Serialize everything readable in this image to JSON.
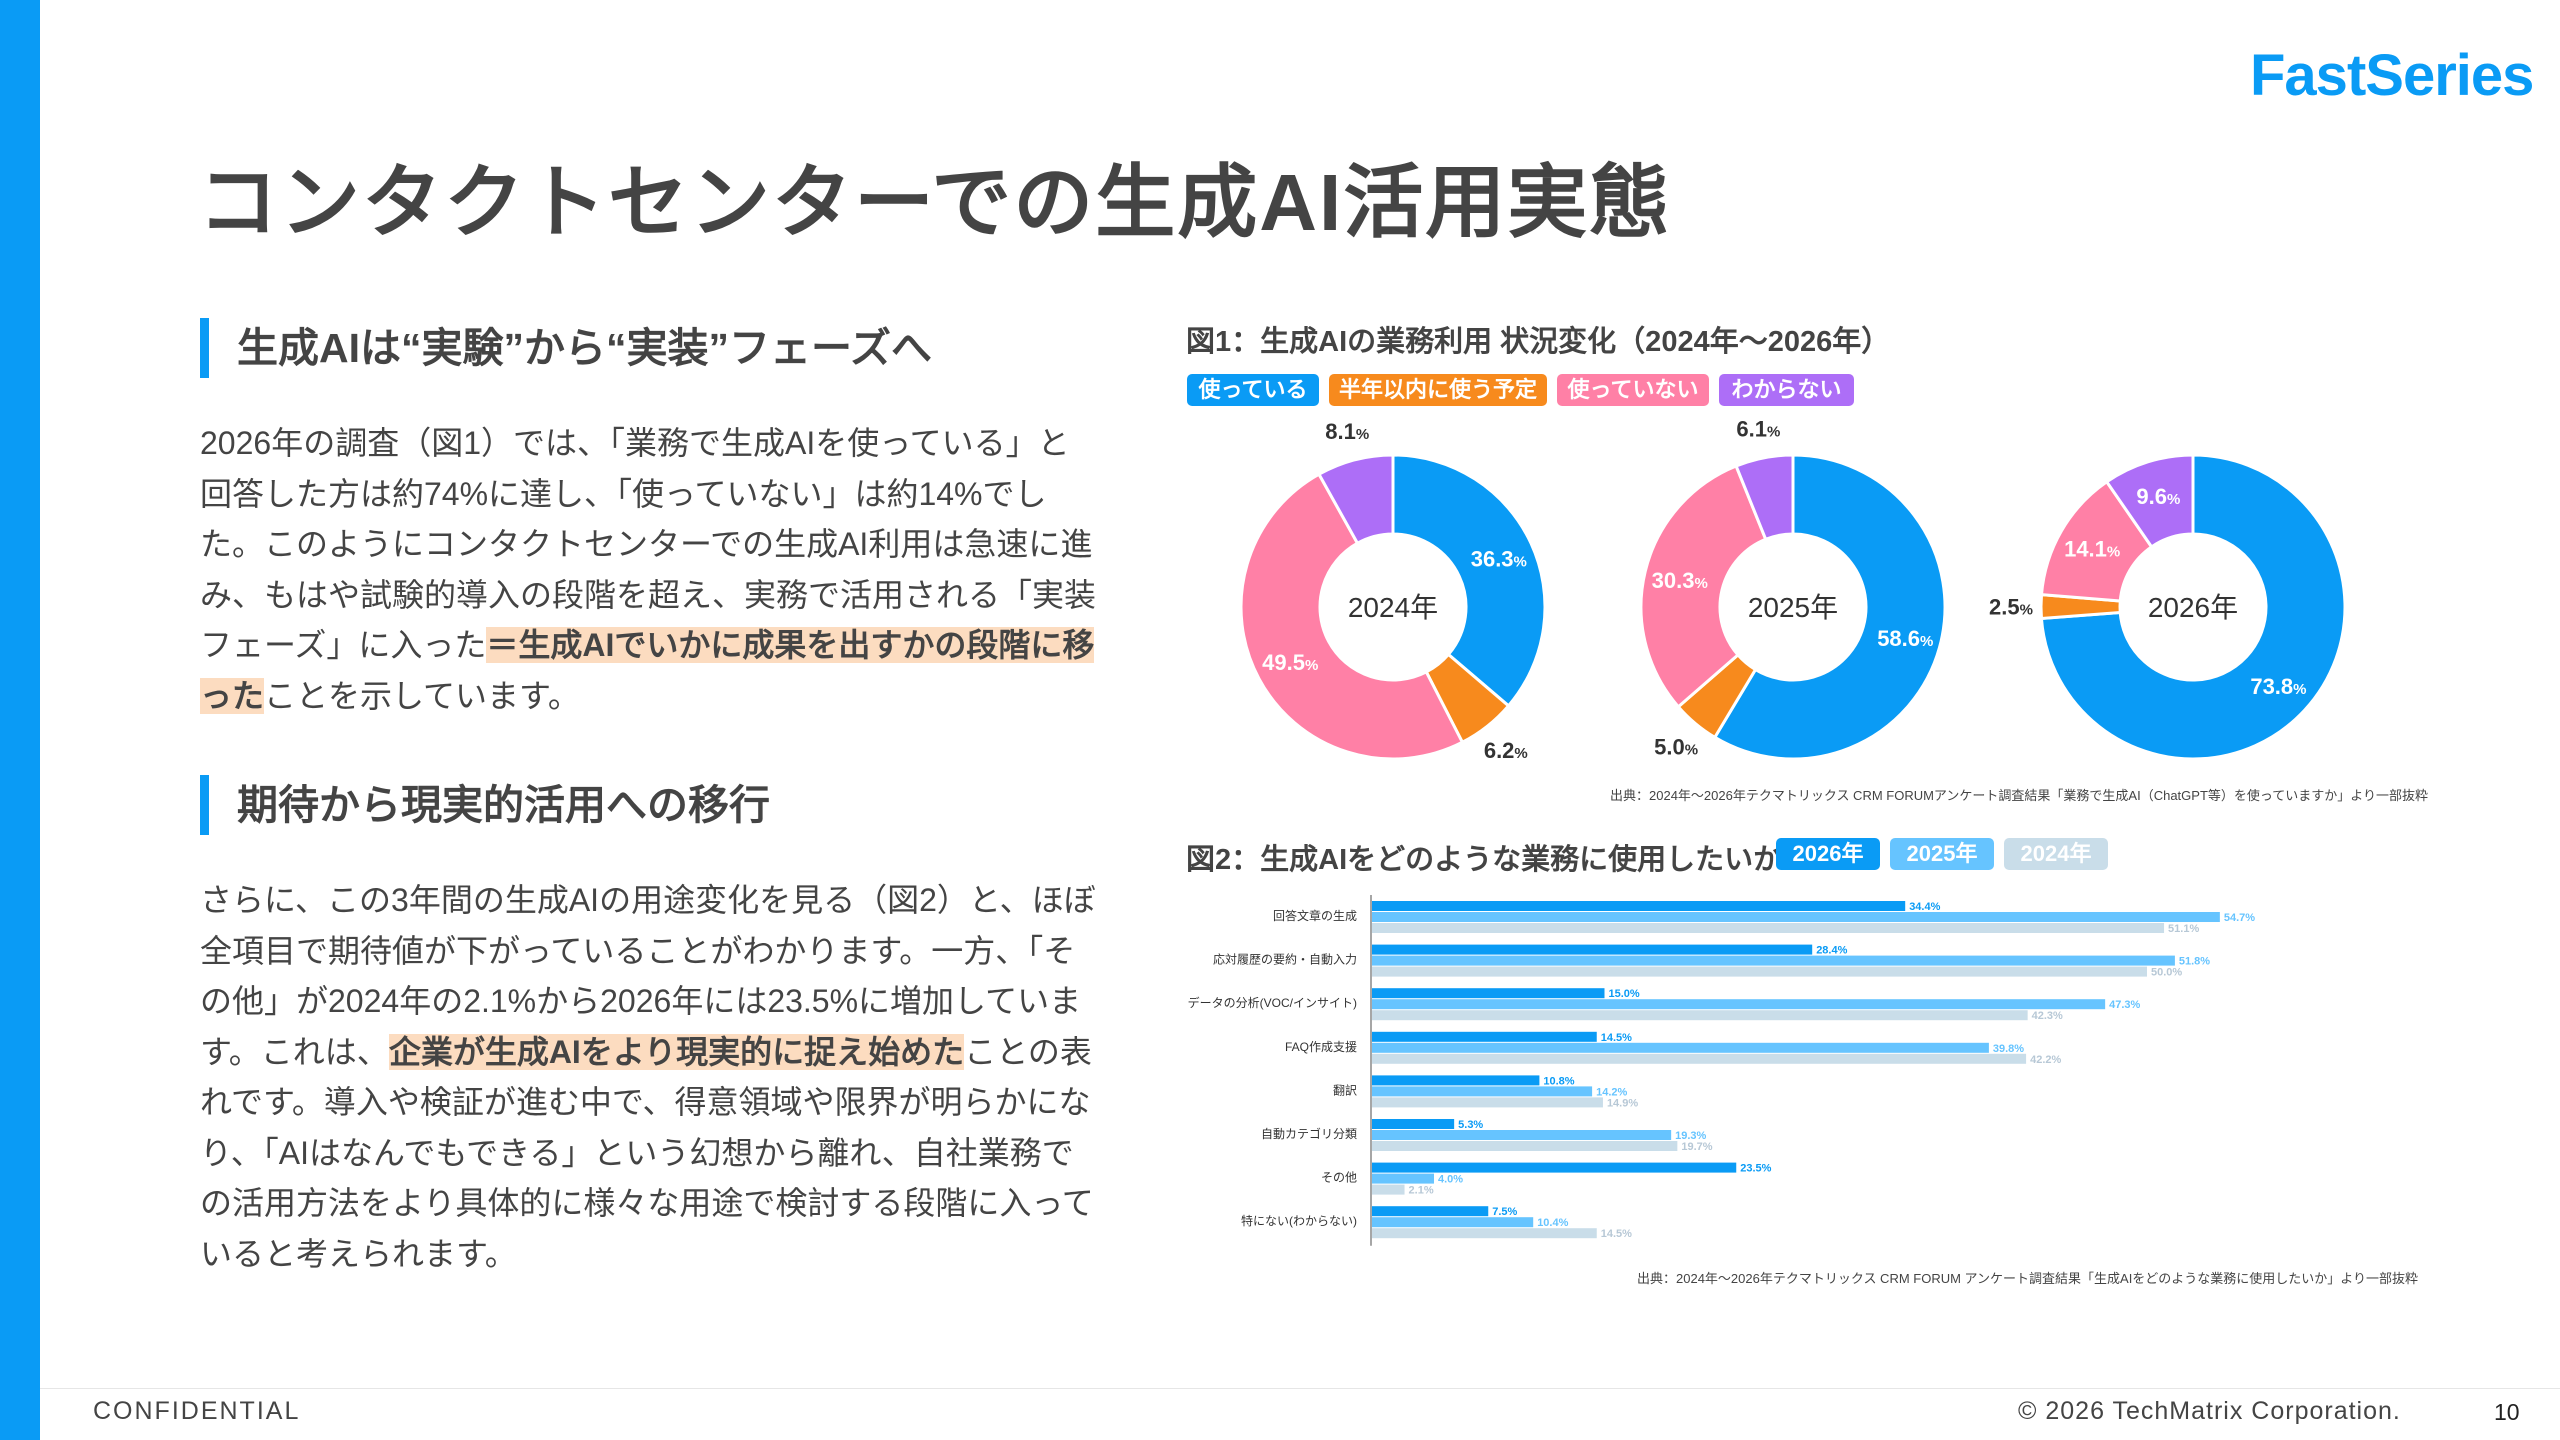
{
  "brand": {
    "logo": "FastSeries",
    "accent": "#0a9bf5"
  },
  "title": "コンタクトセンターでの生成AI活用実態",
  "section1": {
    "heading": "生成AIは“実験”から“実装”フェーズへ",
    "pre": "2026年の調査（図1）では、「業務で生成AIを使っている」と回答した方は約74%に達し、「使っていない」は約14%でした。このようにコンタクトセンターでの生成AI利用は急速に進み、もはや試験的導入の段階を超え、実務で活用される「実装フェーズ」に入った",
    "highlight": "＝生成AIでいかに成果を出すかの段階に移った",
    "post": "ことを示しています。"
  },
  "section2": {
    "heading": "期待から現実的活用への移行",
    "pre": "さらに、この3年間の生成AIの用途変化を見る（図2）と、ほぼ全項目で期待値が下がっていることがわかります。一方、「その他」が2024年の2.1%から2026年には23.5%に増加しています。これは、",
    "highlight": "企業が生成AIをより現実的に捉え始めた",
    "post": "ことの表れです。導入や検証が進む中で、得意領域や限界が明らかになり、「AIはなんでもできる」という幻想から離れ、自社業務での活用方法をより具体的に様々な用途で検討する段階に入っていると考えられます。"
  },
  "chart_data": [
    {
      "type": "pie",
      "title": "図1：生成AIの業務利用 状況変化（2024年〜2026年）",
      "legend": [
        {
          "label": "使っている",
          "color": "#0a9bf5"
        },
        {
          "label": "半年以内に使う予定",
          "color": "#f78a1d"
        },
        {
          "label": "使っていない",
          "color": "#ff80a6"
        },
        {
          "label": "わからない",
          "color": "#ad6ef7"
        }
      ],
      "donuts": [
        {
          "year": "2024年",
          "values": [
            36.3,
            6.2,
            49.5,
            8.1
          ]
        },
        {
          "year": "2025年",
          "values": [
            58.6,
            5.0,
            30.3,
            6.1
          ]
        },
        {
          "year": "2026年",
          "values": [
            73.8,
            2.5,
            14.1,
            9.6
          ]
        }
      ],
      "unit": "%",
      "source": "出典：2024年〜2026年テクマトリックス CRM FORUMアンケート調査結果「業務で生成AI（ChatGPT等）を使っていますか」より一部抜粋"
    },
    {
      "type": "bar",
      "title": "図2：生成AIをどのような業務に使用したいか",
      "categories": [
        "回答文章の生成",
        "応対履歴の要約・自動入力",
        "データの分析(VOC/インサイト)",
        "FAQ作成支援",
        "翻訳",
        "自動カテゴリ分類",
        "その他",
        "特にない(わからない)"
      ],
      "series": [
        {
          "name": "2026年",
          "color": "#0a9bf5",
          "values": [
            34.4,
            28.4,
            15.0,
            14.5,
            10.8,
            5.3,
            23.5,
            7.5
          ]
        },
        {
          "name": "2025年",
          "color": "#66c4ff",
          "values": [
            54.7,
            51.8,
            47.3,
            39.8,
            14.2,
            19.3,
            4.0,
            10.4
          ]
        },
        {
          "name": "2024年",
          "color": "#c9dde9",
          "values": [
            51.1,
            50.0,
            42.3,
            42.2,
            14.9,
            19.7,
            2.1,
            14.5
          ]
        }
      ],
      "unit": "%",
      "source": "出典：2024年〜2026年テクマトリックス CRM FORUM アンケート調査結果「生成AIをどのような業務に使用したいか」より一部抜粋"
    }
  ],
  "footer": {
    "confidential": "CONFIDENTIAL",
    "copyright": "© 2026 TechMatrix Corporation.",
    "page": "10"
  }
}
